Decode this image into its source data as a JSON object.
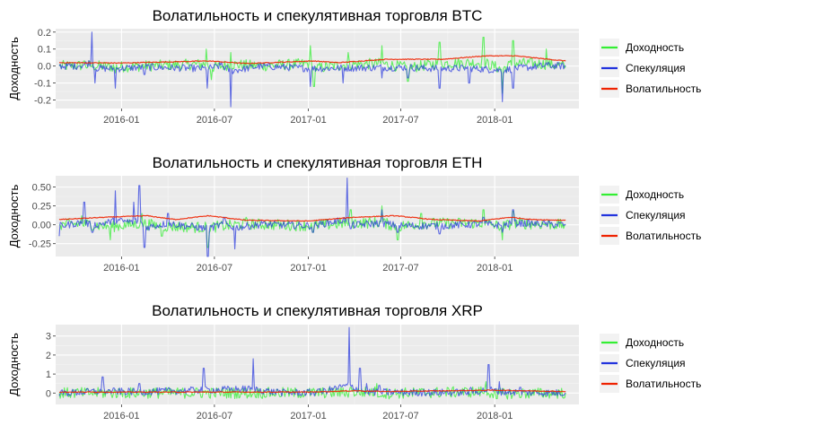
{
  "chart_data": [
    {
      "type": "line",
      "title": "Волатильность и спекулятивная торговля BTC",
      "ylabel": "Доходность",
      "xlabel": "",
      "x_ticks": [
        "2016-01",
        "2016-07",
        "2017-01",
        "2017-07",
        "2018-01"
      ],
      "x_range": [
        "2015-08-25",
        "2018-06-15"
      ],
      "y_ticks": [
        "0.2",
        "0.1",
        "0.0",
        "-0.1",
        "-0.2"
      ],
      "y_tick_values": [
        0.2,
        0.1,
        0.0,
        -0.1,
        -0.2
      ],
      "ylim": [
        -0.25,
        0.22
      ],
      "data_range": [
        "2015-09-01",
        "2018-05-20"
      ],
      "grid": true,
      "legend_position": "right",
      "series": [
        {
          "name": "Доходность",
          "color": "#33ee33",
          "points": [
            [
              "2015-09-01",
              0.0
            ],
            [
              "2015-10-20",
              0.03
            ],
            [
              "2015-12-20",
              -0.04
            ],
            [
              "2016-03-01",
              0.02
            ],
            [
              "2016-06-15",
              0.1
            ],
            [
              "2016-06-25",
              -0.08
            ],
            [
              "2016-08-02",
              0.08
            ],
            [
              "2016-10-01",
              0.01
            ],
            [
              "2017-01-05",
              0.12
            ],
            [
              "2017-01-12",
              -0.12
            ],
            [
              "2017-03-20",
              0.08
            ],
            [
              "2017-05-25",
              0.12
            ],
            [
              "2017-07-15",
              -0.09
            ],
            [
              "2017-09-15",
              0.14
            ],
            [
              "2017-12-10",
              0.17
            ],
            [
              "2018-01-16",
              -0.16
            ],
            [
              "2018-02-06",
              0.15
            ],
            [
              "2018-04-12",
              0.1
            ],
            [
              "2018-05-20",
              0.0
            ]
          ]
        },
        {
          "name": "Спекуляция",
          "color": "#2233dd",
          "points": [
            [
              "2015-09-01",
              0.0
            ],
            [
              "2015-10-10",
              0.0
            ],
            [
              "2015-11-04",
              0.2
            ],
            [
              "2015-11-10",
              -0.1
            ],
            [
              "2015-12-20",
              -0.13
            ],
            [
              "2016-02-15",
              -0.05
            ],
            [
              "2016-06-17",
              -0.13
            ],
            [
              "2016-07-15",
              0.02
            ],
            [
              "2016-08-02",
              -0.24
            ],
            [
              "2016-10-01",
              0.0
            ],
            [
              "2017-01-05",
              -0.12
            ],
            [
              "2017-03-10",
              -0.1
            ],
            [
              "2017-05-25",
              -0.07
            ],
            [
              "2017-07-15",
              -0.07
            ],
            [
              "2017-09-15",
              -0.13
            ],
            [
              "2017-11-12",
              -0.1
            ],
            [
              "2018-01-16",
              -0.21
            ],
            [
              "2018-02-06",
              -0.13
            ],
            [
              "2018-04-12",
              0.02
            ],
            [
              "2018-05-20",
              0.0
            ]
          ]
        },
        {
          "name": "Волатильность",
          "color": "#ee2200",
          "points": [
            [
              "2015-09-01",
              0.02
            ],
            [
              "2016-01-01",
              0.018
            ],
            [
              "2016-06-20",
              0.03
            ],
            [
              "2016-09-01",
              0.015
            ],
            [
              "2017-01-10",
              0.03
            ],
            [
              "2017-03-01",
              0.02
            ],
            [
              "2017-06-01",
              0.04
            ],
            [
              "2017-09-20",
              0.04
            ],
            [
              "2017-12-15",
              0.06
            ],
            [
              "2018-02-10",
              0.06
            ],
            [
              "2018-05-20",
              0.03
            ]
          ]
        }
      ]
    },
    {
      "type": "line",
      "title": "Волатильность и спекулятивная торговля ETH",
      "ylabel": "Доходность",
      "xlabel": "",
      "x_ticks": [
        "2016-01",
        "2016-07",
        "2017-01",
        "2017-07",
        "2018-01"
      ],
      "x_range": [
        "2015-08-25",
        "2018-06-15"
      ],
      "y_ticks": [
        "0.50",
        "0.25",
        "0.00",
        "-0.25"
      ],
      "y_tick_values": [
        0.5,
        0.25,
        0.0,
        -0.25
      ],
      "ylim": [
        -0.42,
        0.65
      ],
      "data_range": [
        "2015-09-01",
        "2018-05-20"
      ],
      "grid": true,
      "legend_position": "right",
      "series": [
        {
          "name": "Доходность",
          "color": "#33ee33",
          "points": [
            [
              "2015-09-01",
              0.0
            ],
            [
              "2015-10-15",
              0.12
            ],
            [
              "2015-12-10",
              -0.2
            ],
            [
              "2016-02-10",
              0.15
            ],
            [
              "2016-03-20",
              -0.15
            ],
            [
              "2016-06-18",
              -0.3
            ],
            [
              "2016-09-01",
              0.1
            ],
            [
              "2017-01-10",
              -0.1
            ],
            [
              "2017-03-25",
              0.2
            ],
            [
              "2017-05-25",
              0.25
            ],
            [
              "2017-06-25",
              -0.2
            ],
            [
              "2017-08-10",
              0.15
            ],
            [
              "2017-12-10",
              0.2
            ],
            [
              "2018-01-16",
              -0.2
            ],
            [
              "2018-02-06",
              0.18
            ],
            [
              "2018-05-20",
              0.0
            ]
          ]
        },
        {
          "name": "Спекуляция",
          "color": "#2233dd",
          "points": [
            [
              "2015-09-01",
              -0.15
            ],
            [
              "2015-10-20",
              0.3
            ],
            [
              "2015-11-05",
              -0.1
            ],
            [
              "2015-12-20",
              0.45
            ],
            [
              "2016-01-25",
              0.3
            ],
            [
              "2016-02-05",
              0.52
            ],
            [
              "2016-02-15",
              -0.3
            ],
            [
              "2016-04-01",
              0.15
            ],
            [
              "2016-06-18",
              -0.42
            ],
            [
              "2016-07-20",
              0.1
            ],
            [
              "2016-08-10",
              -0.32
            ],
            [
              "2016-10-01",
              0.05
            ],
            [
              "2017-01-10",
              -0.1
            ],
            [
              "2017-03-18",
              0.62
            ],
            [
              "2017-03-25",
              -0.05
            ],
            [
              "2017-05-25",
              0.2
            ],
            [
              "2017-06-25",
              -0.1
            ],
            [
              "2017-09-15",
              -0.12
            ],
            [
              "2017-12-10",
              0.1
            ],
            [
              "2018-01-16",
              -0.1
            ],
            [
              "2018-02-06",
              0.2
            ],
            [
              "2018-05-20",
              0.0
            ]
          ]
        },
        {
          "name": "Волатильность",
          "color": "#ee2200",
          "points": [
            [
              "2015-09-01",
              0.07
            ],
            [
              "2015-12-01",
              0.1
            ],
            [
              "2016-02-20",
              0.12
            ],
            [
              "2016-04-15",
              0.07
            ],
            [
              "2016-06-20",
              0.12
            ],
            [
              "2016-09-01",
              0.06
            ],
            [
              "2017-01-01",
              0.05
            ],
            [
              "2017-04-01",
              0.1
            ],
            [
              "2017-06-20",
              0.12
            ],
            [
              "2017-09-01",
              0.07
            ],
            [
              "2017-12-01",
              0.05
            ],
            [
              "2018-02-01",
              0.1
            ],
            [
              "2018-03-15",
              0.07
            ],
            [
              "2018-05-20",
              0.06
            ]
          ]
        }
      ]
    },
    {
      "type": "line",
      "title": "Волатильность и спекулятивная торговля XRP",
      "ylabel": "Доходность",
      "xlabel": "",
      "x_ticks": [
        "2016-01",
        "2016-07",
        "2017-01",
        "2017-07",
        "2018-01"
      ],
      "x_range": [
        "2015-08-25",
        "2018-06-15"
      ],
      "y_ticks": [
        "3",
        "2",
        "1",
        "0"
      ],
      "y_tick_values": [
        3,
        2,
        1,
        0
      ],
      "ylim": [
        -0.6,
        3.6
      ],
      "data_range": [
        "2015-09-01",
        "2018-05-20"
      ],
      "grid": true,
      "legend_position": "right",
      "series": [
        {
          "name": "Доходность",
          "color": "#33ee33",
          "points": [
            [
              "2015-09-01",
              0.0
            ],
            [
              "2016-01-01",
              0.05
            ],
            [
              "2017-01-01",
              0.05
            ],
            [
              "2017-03-25",
              0.3
            ],
            [
              "2017-05-15",
              0.5
            ],
            [
              "2017-05-20",
              -0.2
            ],
            [
              "2017-12-15",
              0.6
            ],
            [
              "2018-01-05",
              -0.3
            ],
            [
              "2018-05-20",
              0.0
            ]
          ]
        },
        {
          "name": "Спекуляция",
          "color": "#2233dd",
          "points": [
            [
              "2015-09-01",
              -0.15
            ],
            [
              "2015-11-25",
              0.85
            ],
            [
              "2016-02-05",
              0.5
            ],
            [
              "2016-06-10",
              1.3
            ],
            [
              "2016-09-15",
              1.8
            ],
            [
              "2016-11-01",
              0.2
            ],
            [
              "2017-01-20",
              0.2
            ],
            [
              "2017-03-22",
              3.45
            ],
            [
              "2017-04-12",
              1.3
            ],
            [
              "2017-04-25",
              0.5
            ],
            [
              "2017-05-20",
              0.4
            ],
            [
              "2017-08-15",
              0.2
            ],
            [
              "2017-11-15",
              0.3
            ],
            [
              "2017-12-20",
              1.5
            ],
            [
              "2018-01-10",
              0.6
            ],
            [
              "2018-02-20",
              0.3
            ],
            [
              "2018-05-20",
              0.0
            ]
          ]
        },
        {
          "name": "Волатильность",
          "color": "#ee2200",
          "points": [
            [
              "2015-09-01",
              0.05
            ],
            [
              "2016-01-01",
              0.05
            ],
            [
              "2017-01-01",
              0.05
            ],
            [
              "2017-04-01",
              0.12
            ],
            [
              "2017-06-01",
              0.08
            ],
            [
              "2018-01-01",
              0.15
            ],
            [
              "2018-05-20",
              0.08
            ]
          ]
        }
      ]
    }
  ]
}
